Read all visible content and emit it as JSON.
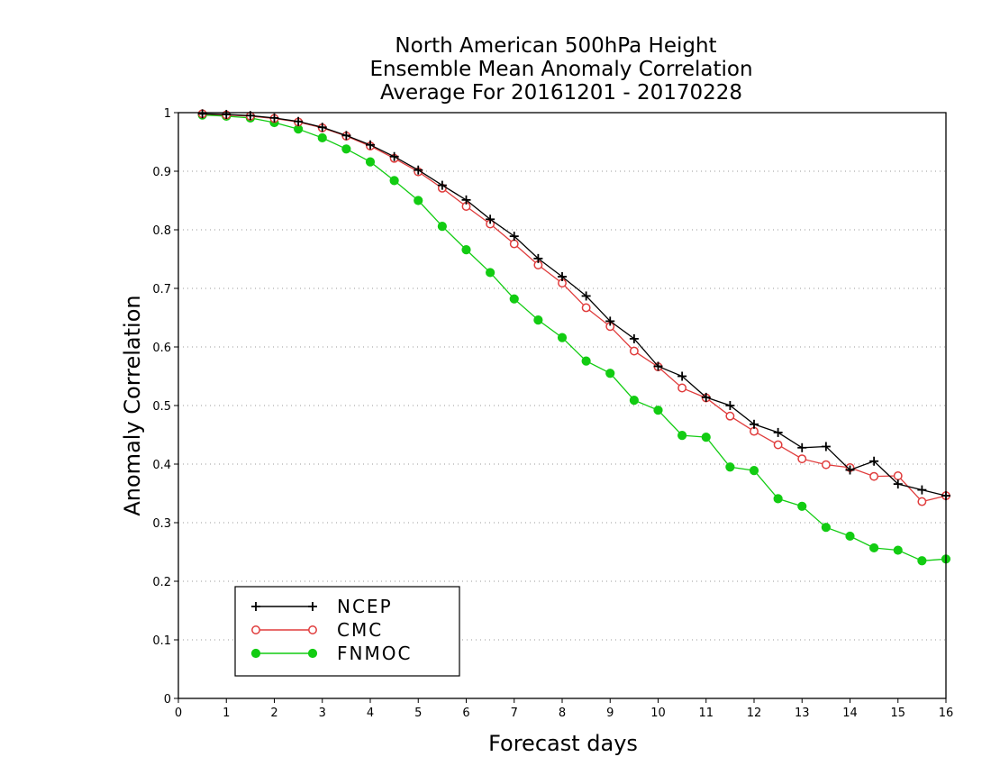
{
  "chart_data": {
    "type": "line",
    "title": [
      "North American 500hPa Height",
      "Ensemble Mean Anomaly Correlation",
      "Average For 20161201 - 20170228"
    ],
    "xlabel": "Forecast days",
    "ylabel": "Anomaly Correlation",
    "xlim": [
      0,
      16
    ],
    "ylim": [
      0,
      1
    ],
    "x_ticks": [
      0,
      1,
      2,
      3,
      4,
      5,
      6,
      7,
      8,
      9,
      10,
      11,
      12,
      13,
      14,
      15,
      16
    ],
    "y_ticks": [
      0,
      0.1,
      0.2,
      0.3,
      0.4,
      0.5,
      0.6,
      0.7,
      0.8,
      0.9,
      1
    ],
    "grid": "horizontal-dotted",
    "legend_position": "bottom-left",
    "x": [
      0.5,
      1,
      1.5,
      2,
      2.5,
      3,
      3.5,
      4,
      4.5,
      5,
      5.5,
      6,
      6.5,
      7,
      7.5,
      8,
      8.5,
      9,
      9.5,
      10,
      10.5,
      11,
      11.5,
      12,
      12.5,
      13,
      13.5,
      14,
      14.5,
      15,
      15.5,
      16
    ],
    "series": [
      {
        "name": "NCEP",
        "color": "#000000",
        "marker": "plus",
        "values": [
          0.998,
          0.997,
          0.995,
          0.991,
          0.985,
          0.975,
          0.961,
          0.945,
          0.925,
          0.902,
          0.876,
          0.851,
          0.818,
          0.789,
          0.751,
          0.72,
          0.687,
          0.644,
          0.614,
          0.567,
          0.55,
          0.514,
          0.5,
          0.468,
          0.454,
          0.428,
          0.43,
          0.39,
          0.405,
          0.366,
          0.356,
          0.346
        ]
      },
      {
        "name": "CMC",
        "color": "#e03c3c",
        "marker": "open-circle",
        "values": [
          0.998,
          0.996,
          0.994,
          0.99,
          0.984,
          0.974,
          0.96,
          0.943,
          0.922,
          0.899,
          0.871,
          0.84,
          0.81,
          0.776,
          0.74,
          0.709,
          0.667,
          0.635,
          0.593,
          0.566,
          0.53,
          0.513,
          0.482,
          0.456,
          0.433,
          0.409,
          0.399,
          0.394,
          0.379,
          0.38,
          0.336,
          0.346
        ]
      },
      {
        "name": "FNMOC",
        "color": "#12cc12",
        "marker": "filled-circle",
        "values": [
          0.996,
          0.994,
          0.991,
          0.983,
          0.972,
          0.957,
          0.938,
          0.916,
          0.884,
          0.85,
          0.806,
          0.766,
          0.727,
          0.682,
          0.646,
          0.616,
          0.576,
          0.555,
          0.509,
          0.492,
          0.449,
          0.446,
          0.395,
          0.389,
          0.341,
          0.328,
          0.292,
          0.277,
          0.257,
          0.253,
          0.235,
          0.238
        ]
      }
    ]
  }
}
